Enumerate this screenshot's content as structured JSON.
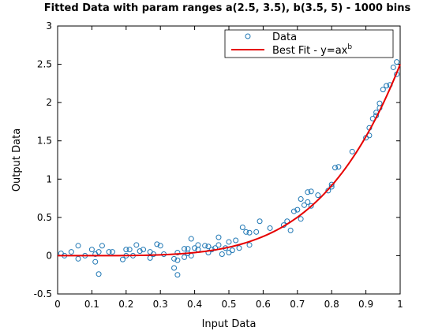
{
  "chart_data": {
    "type": "scatter",
    "title": "Fitted Data with param ranges a(2.5, 3.5), b(3.5, 5) - 1000 bins",
    "xlabel": "Input Data",
    "ylabel": "Output Data",
    "xlim": [
      0,
      1
    ],
    "ylim": [
      -0.5,
      3
    ],
    "xticks": [
      "0",
      "0.1",
      "0.2",
      "0.3",
      "0.4",
      "0.5",
      "0.6",
      "0.7",
      "0.8",
      "0.9",
      "1"
    ],
    "yticks": [
      "-0.5",
      "0",
      "0.5",
      "1",
      "1.5",
      "2",
      "2.5",
      "3"
    ],
    "grid": false,
    "legend_placement": "top-right",
    "legend": {
      "data_label": "Data",
      "fit_label": "Best Fit - y=ax",
      "fit_sup": "b"
    },
    "colors": {
      "data": "#1f77b4",
      "fit": "#e60000",
      "axis": "#000000"
    },
    "series": [
      {
        "name": "Data",
        "marker": "circle",
        "points": [
          [
            0.01,
            0.03
          ],
          [
            0.02,
            0.0
          ],
          [
            0.04,
            0.05
          ],
          [
            0.06,
            0.13
          ],
          [
            0.06,
            -0.04
          ],
          [
            0.08,
            0.0
          ],
          [
            0.1,
            0.08
          ],
          [
            0.11,
            0.02
          ],
          [
            0.11,
            -0.08
          ],
          [
            0.12,
            0.05
          ],
          [
            0.12,
            -0.24
          ],
          [
            0.13,
            0.13
          ],
          [
            0.15,
            0.05
          ],
          [
            0.16,
            0.05
          ],
          [
            0.19,
            -0.05
          ],
          [
            0.2,
            0.08
          ],
          [
            0.2,
            0.0
          ],
          [
            0.21,
            0.08
          ],
          [
            0.22,
            0.0
          ],
          [
            0.23,
            0.14
          ],
          [
            0.24,
            0.06
          ],
          [
            0.25,
            0.08
          ],
          [
            0.27,
            0.05
          ],
          [
            0.27,
            -0.03
          ],
          [
            0.28,
            0.02
          ],
          [
            0.29,
            0.15
          ],
          [
            0.3,
            0.13
          ],
          [
            0.31,
            0.02
          ],
          [
            0.34,
            -0.04
          ],
          [
            0.34,
            -0.16
          ],
          [
            0.35,
            -0.25
          ],
          [
            0.35,
            -0.06
          ],
          [
            0.35,
            0.04
          ],
          [
            0.37,
            0.09
          ],
          [
            0.37,
            -0.02
          ],
          [
            0.38,
            0.09
          ],
          [
            0.38,
            0.03
          ],
          [
            0.39,
            0.22
          ],
          [
            0.39,
            0.0
          ],
          [
            0.4,
            0.1
          ],
          [
            0.41,
            0.14
          ],
          [
            0.41,
            0.08
          ],
          [
            0.43,
            0.13
          ],
          [
            0.44,
            0.12
          ],
          [
            0.44,
            0.04
          ],
          [
            0.45,
            0.08
          ],
          [
            0.46,
            0.1
          ],
          [
            0.47,
            0.24
          ],
          [
            0.47,
            0.14
          ],
          [
            0.48,
            0.02
          ],
          [
            0.49,
            0.1
          ],
          [
            0.5,
            0.18
          ],
          [
            0.5,
            0.04
          ],
          [
            0.51,
            0.07
          ],
          [
            0.52,
            0.2
          ],
          [
            0.53,
            0.1
          ],
          [
            0.54,
            0.37
          ],
          [
            0.55,
            0.31
          ],
          [
            0.56,
            0.14
          ],
          [
            0.56,
            0.3
          ],
          [
            0.58,
            0.31
          ],
          [
            0.59,
            0.45
          ],
          [
            0.62,
            0.36
          ],
          [
            0.66,
            0.4
          ],
          [
            0.67,
            0.45
          ],
          [
            0.68,
            0.33
          ],
          [
            0.69,
            0.58
          ],
          [
            0.7,
            0.6
          ],
          [
            0.71,
            0.74
          ],
          [
            0.71,
            0.48
          ],
          [
            0.72,
            0.66
          ],
          [
            0.73,
            0.7
          ],
          [
            0.73,
            0.83
          ],
          [
            0.74,
            0.65
          ],
          [
            0.74,
            0.84
          ],
          [
            0.76,
            0.79
          ],
          [
            0.79,
            0.85
          ],
          [
            0.8,
            0.9
          ],
          [
            0.8,
            0.93
          ],
          [
            0.81,
            1.15
          ],
          [
            0.82,
            1.16
          ],
          [
            0.86,
            1.36
          ],
          [
            0.9,
            1.54
          ],
          [
            0.91,
            1.57
          ],
          [
            0.91,
            1.67
          ],
          [
            0.92,
            1.79
          ],
          [
            0.93,
            1.83
          ],
          [
            0.93,
            1.87
          ],
          [
            0.94,
            1.93
          ],
          [
            0.94,
            1.99
          ],
          [
            0.95,
            2.17
          ],
          [
            0.96,
            2.22
          ],
          [
            0.97,
            2.23
          ],
          [
            0.98,
            2.46
          ],
          [
            0.99,
            2.37
          ],
          [
            0.99,
            2.53
          ]
        ]
      },
      {
        "name": "Best Fit - y=ax^b",
        "type": "line",
        "a": 2.5,
        "b": 4.5
      }
    ]
  }
}
